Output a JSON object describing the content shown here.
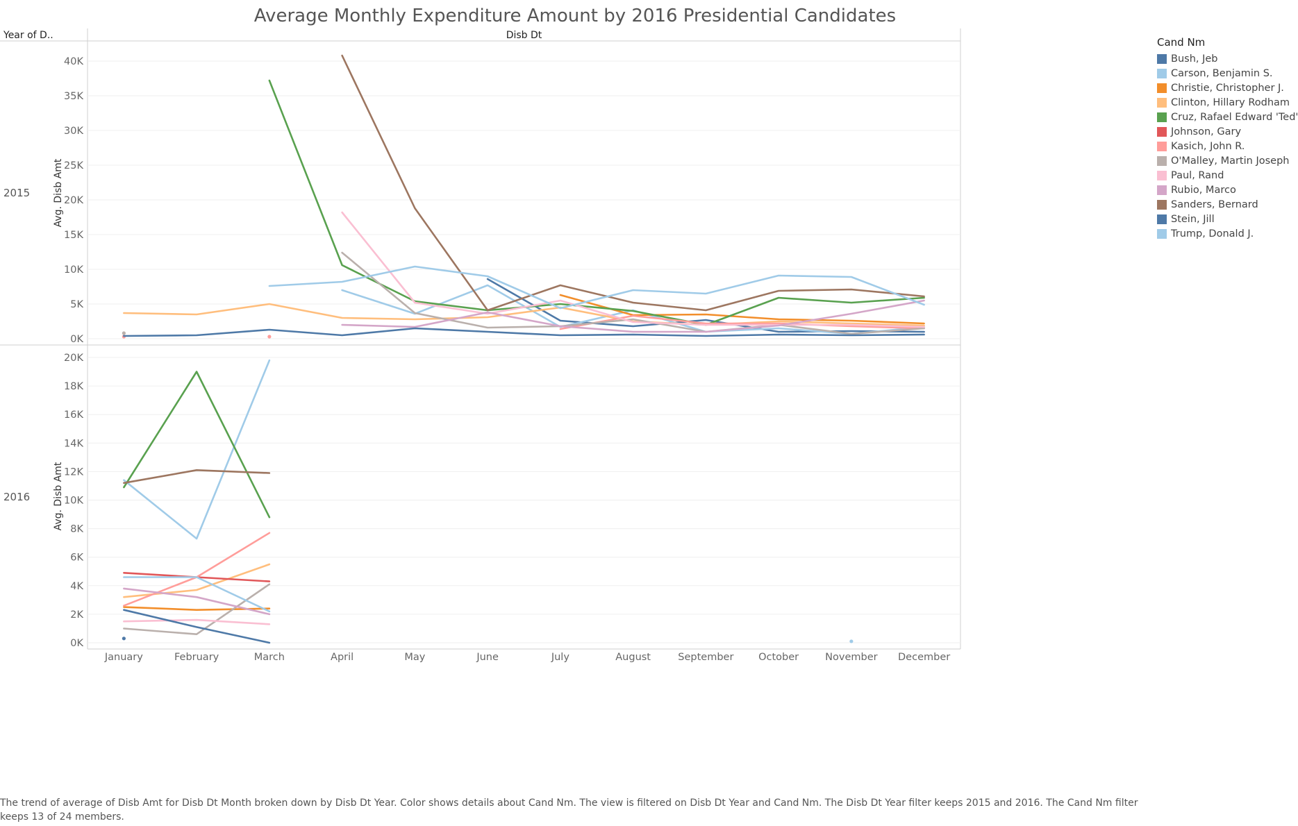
{
  "chart_data": {
    "type": "line",
    "title": "Average Monthly Expenditure Amount by 2016 Presidential Candidates",
    "row_header": "Year of D..",
    "column_header": "Disb Dt",
    "ylabel": "Avg. Disb Amt",
    "legend_title": "Cand Nm",
    "legend_position": "right",
    "caption": "The trend of average of Disb Amt for Disb Dt Month broken down by Disb Dt Year.  Color shows details about Cand Nm. The view is filtered on Disb Dt Year and Cand Nm. The Disb Dt Year filter keeps 2015 and 2016. The Cand Nm filter keeps 13 of 24 members.",
    "categories": [
      "January",
      "February",
      "March",
      "April",
      "May",
      "June",
      "July",
      "August",
      "September",
      "October",
      "November",
      "December"
    ],
    "legend": [
      {
        "name": "Bush, Jeb",
        "color": "#4e79a7"
      },
      {
        "name": "Carson, Benjamin S.",
        "color": "#a0cbe8"
      },
      {
        "name": "Christie, Christopher J.",
        "color": "#f28e2b"
      },
      {
        "name": "Clinton, Hillary Rodham",
        "color": "#ffbe7d"
      },
      {
        "name": "Cruz, Rafael Edward 'Ted'",
        "color": "#59a14f"
      },
      {
        "name": "Johnson, Gary",
        "color": "#e15759"
      },
      {
        "name": "Kasich, John R.",
        "color": "#ff9d9a"
      },
      {
        "name": "O'Malley, Martin Joseph",
        "color": "#bab0ac"
      },
      {
        "name": "Paul, Rand",
        "color": "#fabfd2"
      },
      {
        "name": "Rubio, Marco",
        "color": "#d4a6c8"
      },
      {
        "name": "Sanders, Bernard",
        "color": "#9d7660"
      },
      {
        "name": "Stein, Jill",
        "color": "#4e79a7"
      },
      {
        "name": "Trump, Donald J.",
        "color": "#a0cbe8"
      }
    ],
    "panels": [
      {
        "year": "2015",
        "ylim": [
          0,
          42000
        ],
        "yticks": [
          0,
          5000,
          10000,
          15000,
          20000,
          25000,
          30000,
          35000,
          40000
        ],
        "ytick_labels": [
          "0K",
          "5K",
          "10K",
          "15K",
          "20K",
          "25K",
          "30K",
          "35K",
          "40K"
        ],
        "series": [
          {
            "name": "Bush, Jeb",
            "values": [
              null,
              null,
              null,
              null,
              null,
              8600,
              2600,
              1800,
              2700,
              1000,
              1100,
              1000
            ]
          },
          {
            "name": "Carson, Benjamin S.",
            "values": [
              null,
              null,
              null,
              7000,
              3600,
              7700,
              1700,
              4100,
              1000,
              1500,
              700,
              1700
            ]
          },
          {
            "name": "Christie, Christopher J.",
            "values": [
              null,
              null,
              null,
              null,
              null,
              null,
              6300,
              3400,
              3500,
              2800,
              2600,
              2200
            ]
          },
          {
            "name": "Clinton, Hillary Rodham",
            "values": [
              3700,
              3500,
              5000,
              3000,
              2800,
              3100,
              4500,
              2500,
              2000,
              2500,
              2200,
              1900
            ]
          },
          {
            "name": "Cruz, Rafael Edward 'Ted'",
            "values": [
              null,
              null,
              37200,
              10600,
              5400,
              4100,
              5000,
              4000,
              2000,
              5900,
              5200,
              5900
            ]
          },
          {
            "name": "Kasich, John R.",
            "values": [
              300,
              null,
              300,
              null,
              null,
              null,
              1400,
              3300,
              2200,
              2200,
              1800,
              1500
            ]
          },
          {
            "name": "O'Malley, Martin Joseph",
            "values": [
              800,
              null,
              null,
              12400,
              3700,
              1600,
              1800,
              2800,
              1000,
              2000,
              700,
              1500
            ]
          },
          {
            "name": "Paul, Rand",
            "values": [
              null,
              null,
              null,
              18200,
              5200,
              3600,
              5500,
              2400,
              2000,
              2000,
              2000,
              1700
            ]
          },
          {
            "name": "Rubio, Marco",
            "values": [
              null,
              null,
              null,
              2000,
              1700,
              3800,
              1800,
              1000,
              1000,
              1900,
              3600,
              5500
            ]
          },
          {
            "name": "Sanders, Bernard",
            "values": [
              null,
              null,
              null,
              40800,
              18800,
              4100,
              7700,
              5200,
              4100,
              6900,
              7100,
              6100
            ]
          },
          {
            "name": "Stein, Jill",
            "values": [
              400,
              500,
              1300,
              500,
              1500,
              1000,
              500,
              600,
              400,
              600,
              500,
              600
            ]
          },
          {
            "name": "Trump, Donald J.",
            "values": [
              null,
              null,
              7600,
              8200,
              10400,
              9000,
              4400,
              7000,
              6500,
              9100,
              8900,
              4900
            ]
          }
        ]
      },
      {
        "year": "2016",
        "ylim": [
          -200,
          20500
        ],
        "yticks": [
          0,
          2000,
          4000,
          6000,
          8000,
          10000,
          12000,
          14000,
          16000,
          18000,
          20000
        ],
        "ytick_labels": [
          "0K",
          "2K",
          "4K",
          "6K",
          "8K",
          "10K",
          "12K",
          "14K",
          "16K",
          "18K",
          "20K"
        ],
        "series": [
          {
            "name": "Bush, Jeb",
            "values": [
              300,
              null,
              null,
              null,
              null,
              null,
              null,
              null,
              null,
              null,
              null,
              null
            ]
          },
          {
            "name": "Carson, Benjamin S.",
            "values": [
              11400,
              7300,
              19800,
              null,
              null,
              null,
              null,
              null,
              null,
              null,
              null,
              null
            ]
          },
          {
            "name": "Christie, Christopher J.",
            "values": [
              2500,
              2300,
              2400,
              null,
              null,
              null,
              null,
              null,
              null,
              null,
              null,
              null
            ]
          },
          {
            "name": "Clinton, Hillary Rodham",
            "values": [
              3200,
              3700,
              5500,
              null,
              null,
              null,
              null,
              null,
              null,
              null,
              null,
              null
            ]
          },
          {
            "name": "Cruz, Rafael Edward 'Ted'",
            "values": [
              10900,
              19000,
              8800,
              null,
              null,
              null,
              null,
              null,
              null,
              null,
              null,
              null
            ]
          },
          {
            "name": "Johnson, Gary",
            "values": [
              4900,
              4600,
              4300,
              null,
              null,
              null,
              null,
              null,
              null,
              null,
              null,
              null
            ]
          },
          {
            "name": "Kasich, John R.",
            "values": [
              2600,
              4600,
              7700,
              null,
              null,
              null,
              null,
              null,
              null,
              null,
              null,
              null
            ]
          },
          {
            "name": "O'Malley, Martin Joseph",
            "values": [
              1000,
              600,
              4100,
              null,
              null,
              null,
              null,
              null,
              null,
              null,
              null,
              null
            ]
          },
          {
            "name": "Paul, Rand",
            "values": [
              1500,
              1600,
              1300,
              null,
              null,
              null,
              null,
              null,
              null,
              null,
              null,
              null
            ]
          },
          {
            "name": "Rubio, Marco",
            "values": [
              3800,
              3200,
              2000,
              null,
              null,
              null,
              null,
              null,
              null,
              null,
              null,
              null
            ]
          },
          {
            "name": "Sanders, Bernard",
            "values": [
              11200,
              12100,
              11900,
              null,
              null,
              null,
              null,
              null,
              null,
              null,
              null,
              null
            ]
          },
          {
            "name": "Stein, Jill",
            "values": [
              2300,
              1100,
              0,
              null,
              null,
              null,
              null,
              null,
              null,
              null,
              null,
              null
            ]
          },
          {
            "name": "Trump, Donald J.",
            "values": [
              4600,
              4600,
              2200,
              null,
              null,
              null,
              null,
              null,
              null,
              null,
              null,
              null
            ]
          },
          {
            "name": "Trump, Donald J.",
            "values": [
              null,
              null,
              null,
              null,
              null,
              null,
              null,
              null,
              null,
              null,
              100,
              null
            ]
          }
        ]
      }
    ]
  }
}
